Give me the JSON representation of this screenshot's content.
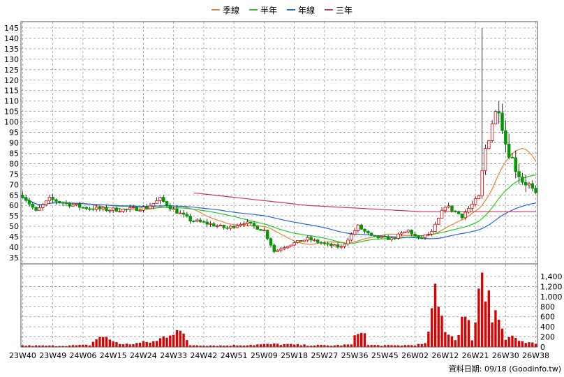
{
  "chart_data": {
    "type": "candlestick",
    "legend": [
      {
        "name": "季線",
        "color": "#e8823a"
      },
      {
        "name": "半年",
        "color": "#22cc22"
      },
      {
        "name": "年線",
        "color": "#2266dd"
      },
      {
        "name": "三年",
        "color": "#cc3366"
      }
    ],
    "price_axis": {
      "ylim": [
        32,
        148
      ],
      "ticks": [
        35,
        40,
        45,
        50,
        55,
        60,
        65,
        70,
        75,
        80,
        85,
        90,
        95,
        100,
        105,
        110,
        115,
        120,
        125,
        130,
        135,
        140,
        145
      ]
    },
    "volume_axis": {
      "ylim": [
        0,
        1650
      ],
      "ticks": [
        0,
        200,
        400,
        600,
        800,
        1000,
        1200,
        1400
      ],
      "tick_labels": [
        "0",
        "200",
        "400",
        "600",
        "800",
        "1,000",
        "1,200",
        "1,400"
      ]
    },
    "x_ticks": [
      "23W40",
      "23W49",
      "24W06",
      "24W15",
      "24W24",
      "24W33",
      "24W42",
      "24W51",
      "25W09",
      "25W18",
      "25W27",
      "25W36",
      "25W45",
      "26W02",
      "26W12",
      "26W21",
      "26W30",
      "26W38"
    ],
    "weeks": 154,
    "week_anchors": [
      [
        0,
        65
      ],
      [
        4,
        57
      ],
      [
        8,
        63
      ],
      [
        13,
        61
      ],
      [
        18,
        59
      ],
      [
        25,
        58
      ],
      [
        31,
        58
      ],
      [
        37,
        59
      ],
      [
        41,
        63
      ],
      [
        45,
        58
      ],
      [
        50,
        53
      ],
      [
        56,
        51
      ],
      [
        61,
        49
      ],
      [
        66,
        52
      ],
      [
        72,
        48
      ],
      [
        75,
        38
      ],
      [
        79,
        41
      ],
      [
        85,
        44
      ],
      [
        91,
        41
      ],
      [
        95,
        40
      ],
      [
        100,
        50
      ],
      [
        104,
        45
      ],
      [
        110,
        44
      ],
      [
        115,
        48
      ],
      [
        118,
        44
      ],
      [
        122,
        47
      ],
      [
        126,
        60
      ],
      [
        131,
        55
      ],
      [
        136,
        64
      ],
      [
        138,
        87
      ],
      [
        140,
        100
      ],
      [
        142,
        108
      ],
      [
        144,
        90
      ],
      [
        147,
        78
      ],
      [
        149,
        72
      ],
      [
        151,
        70
      ],
      [
        153,
        65
      ]
    ],
    "volume_anchors": [
      [
        0,
        30
      ],
      [
        10,
        25
      ],
      [
        20,
        40
      ],
      [
        23,
        230
      ],
      [
        30,
        50
      ],
      [
        40,
        120
      ],
      [
        46,
        400
      ],
      [
        50,
        40
      ],
      [
        60,
        30
      ],
      [
        70,
        50
      ],
      [
        76,
        60
      ],
      [
        84,
        40
      ],
      [
        92,
        30
      ],
      [
        98,
        50
      ],
      [
        101,
        450
      ],
      [
        103,
        40
      ],
      [
        110,
        30
      ],
      [
        116,
        40
      ],
      [
        120,
        60
      ],
      [
        123,
        1000
      ],
      [
        126,
        400
      ],
      [
        129,
        150
      ],
      [
        131,
        600
      ],
      [
        133,
        450
      ],
      [
        134,
        200
      ],
      [
        135,
        600
      ],
      [
        137,
        1650
      ],
      [
        138,
        1100
      ],
      [
        139,
        1400
      ],
      [
        140,
        750
      ],
      [
        141,
        850
      ],
      [
        142,
        600
      ],
      [
        143,
        350
      ],
      [
        144,
        150
      ],
      [
        146,
        250
      ],
      [
        148,
        100
      ],
      [
        151,
        80
      ],
      [
        153,
        60
      ]
    ],
    "three_year_start": 51,
    "three_year_values": [
      66,
      60,
      57,
      57
    ],
    "credit": "資料日期: 09/18  (Goodinfo.tw)"
  }
}
